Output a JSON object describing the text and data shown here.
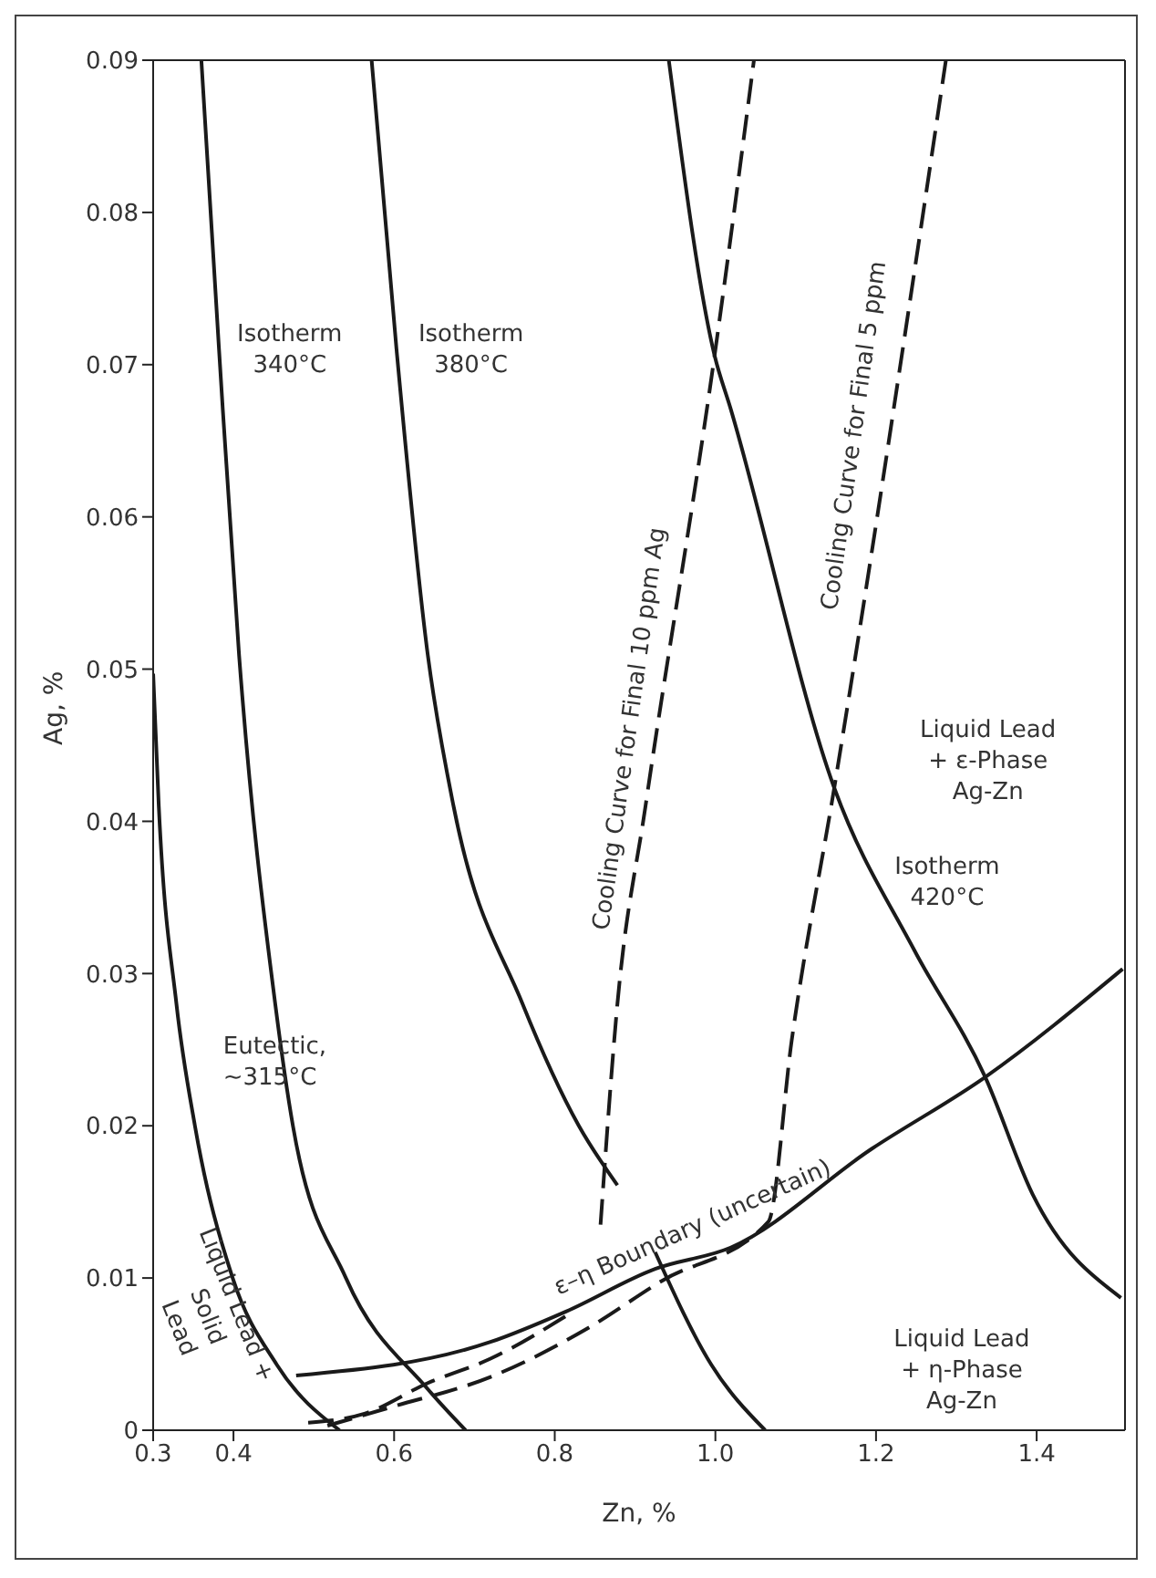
{
  "chart_data": {
    "type": "line",
    "xlabel": "Zn, %",
    "ylabel": "Ag, %",
    "xlim": [
      0.3,
      1.51
    ],
    "ylim": [
      0,
      0.09
    ],
    "xticks": [
      0.3,
      0.4,
      0.6,
      0.8,
      {
        "value": 1,
        "label": "1.0"
      },
      1.2,
      1.4
    ],
    "yticks": [
      0,
      0.01,
      0.02,
      0.03,
      0.04,
      0.05,
      0.06,
      0.07,
      0.08,
      0.09
    ],
    "grid": false,
    "series": [
      {
        "color": "#1a1a1a",
        "line_style": "solid",
        "x": [
          0.3,
          0.307,
          0.329,
          0.352,
          0.399,
          0.454,
          0.532
        ],
        "values": [
          0.0497,
          0.041,
          0.028,
          0.02,
          0.01,
          0.0043,
          0
        ]
      },
      {
        "color": "#1a1a1a",
        "line_style": "solid",
        "x": [
          0.36,
          0.382,
          0.407,
          0.452,
          0.474,
          0.54,
          0.642,
          0.689
        ],
        "values": [
          0.09,
          0.071,
          0.0509,
          0.028,
          0.02,
          0.01,
          0.0027,
          0
        ]
      },
      {
        "color": "#1a1a1a",
        "line_style": "solid",
        "x": [
          0.572,
          0.603,
          0.642,
          0.674,
          0.76,
          0.83,
          0.878
        ],
        "values": [
          0.09,
          0.071,
          0.0509,
          0.041,
          0.028,
          0.02,
          0.0161
        ]
      },
      {
        "color": "#1a1a1a",
        "line_style": "solid",
        "x": [
          0.942,
          0.999,
          1.019,
          1.148,
          1.248,
          1.336,
          1.395,
          1.505
        ],
        "values": [
          0.09,
          0.0706,
          0.0671,
          0.0422,
          0.0315,
          0.0232,
          0.0155,
          0.0087
        ]
      },
      {
        "color": "#1a1a1a",
        "line_style": "solid",
        "x": [
          0.925,
          0.995,
          1.062
        ],
        "values": [
          0.0117,
          0.0043,
          0
        ]
      },
      {
        "color": "#1a1a1a",
        "line_style": "solid",
        "x": [
          0.478,
          0.72,
          0.814,
          0.925,
          1.019,
          1.195,
          1.336,
          1.507
        ],
        "values": [
          0.0036,
          0.0058,
          0.0078,
          0.0106,
          0.012,
          0.0185,
          0.0232,
          0.0303
        ]
      },
      {
        "color": "#1a1a1a",
        "line_style": "dashed",
        "x": [
          0.857,
          0.878,
          0.913,
          0.999,
          1.048
        ],
        "values": [
          0.0135,
          0.028,
          0.041,
          0.0706,
          0.09
        ]
      },
      {
        "color": "#1a1a1a",
        "line_style": "dashed",
        "x": [
          0.493,
          0.564,
          0.642,
          0.72,
          0.823
        ],
        "values": [
          0.0005,
          0.0011,
          0.0031,
          0.0047,
          0.0078
        ]
      },
      {
        "color": "#1a1a1a",
        "line_style": "dashed",
        "x": [
          0.517,
          0.595,
          0.72,
          0.838,
          0.933,
          1.066,
          1.095,
          1.148,
          1.287
        ],
        "values": [
          0.0003,
          0.0015,
          0.0035,
          0.0066,
          0.0098,
          0.0137,
          0.0256,
          0.0422,
          0.09
        ]
      }
    ],
    "annotations": [
      "Isotherm\n340°C",
      "Isotherm\n380°C",
      "Eutectic,\n~315°C",
      "Liquid Lead +\nSolid\nLead",
      "ε–η Boundary (uncertain)",
      "Cooling Curve for Final 10 ppm Ag",
      "Cooling Curve for Final 5 ppm",
      "Liquid Lead\n+ ε-Phase\nAg-Zn",
      "Isotherm\n420°C",
      "Liquid Lead\n+ η-Phase\nAg-Zn"
    ]
  }
}
